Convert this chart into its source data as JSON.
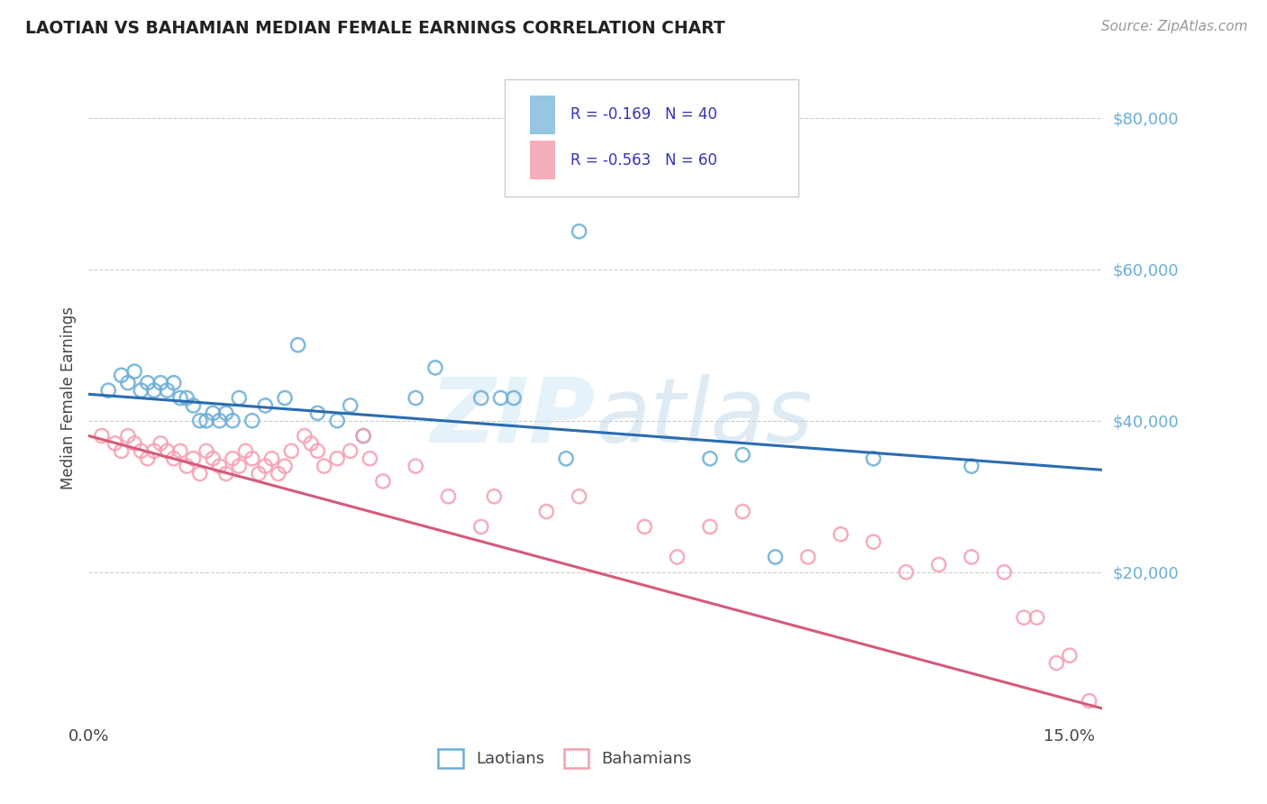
{
  "title": "LAOTIAN VS BAHAMIAN MEDIAN FEMALE EARNINGS CORRELATION CHART",
  "source": "Source: ZipAtlas.com",
  "ylabel": "Median Female Earnings",
  "xlim": [
    0.0,
    0.155
  ],
  "ylim": [
    0,
    86000
  ],
  "ytick_vals": [
    20000,
    40000,
    60000,
    80000
  ],
  "ytick_labels": [
    "$20,000",
    "$40,000",
    "$60,000",
    "$80,000"
  ],
  "xtick_vals": [
    0.0,
    0.15
  ],
  "xtick_labels": [
    "0.0%",
    "15.0%"
  ],
  "bg_color": "#ffffff",
  "grid_color": "#cccccc",
  "blue_color": "#6baed6",
  "pink_color": "#f4a0b0",
  "pink_line_color": "#d45b7a",
  "blue_line_color": "#2b6cb0",
  "watermark_text": "ZIPatlas",
  "watermark_color": "#c8dff0",
  "legend_R_blue": "-0.169",
  "legend_N_blue": "40",
  "legend_R_pink": "-0.563",
  "legend_N_pink": "60",
  "blue_line_x": [
    0.0,
    0.155
  ],
  "blue_line_y": [
    43500,
    33500
  ],
  "pink_line_x": [
    0.0,
    0.155
  ],
  "pink_line_y": [
    38000,
    2000
  ],
  "laotian_x": [
    0.003,
    0.005,
    0.006,
    0.007,
    0.008,
    0.009,
    0.01,
    0.011,
    0.012,
    0.013,
    0.014,
    0.015,
    0.016,
    0.017,
    0.018,
    0.019,
    0.02,
    0.021,
    0.022,
    0.023,
    0.025,
    0.027,
    0.03,
    0.032,
    0.035,
    0.038,
    0.04,
    0.042,
    0.05,
    0.053,
    0.06,
    0.063,
    0.065,
    0.073,
    0.075,
    0.095,
    0.1,
    0.105,
    0.12,
    0.135
  ],
  "laotian_y": [
    44000,
    46000,
    45000,
    46500,
    44000,
    45000,
    44000,
    45000,
    44000,
    45000,
    43000,
    43000,
    42000,
    40000,
    40000,
    41000,
    40000,
    41000,
    40000,
    43000,
    40000,
    42000,
    43000,
    50000,
    41000,
    40000,
    42000,
    38000,
    43000,
    47000,
    43000,
    43000,
    43000,
    35000,
    65000,
    35000,
    35500,
    22000,
    35000,
    34000
  ],
  "bahamian_x": [
    0.002,
    0.004,
    0.005,
    0.006,
    0.007,
    0.008,
    0.009,
    0.01,
    0.011,
    0.012,
    0.013,
    0.014,
    0.015,
    0.016,
    0.017,
    0.018,
    0.019,
    0.02,
    0.021,
    0.022,
    0.023,
    0.024,
    0.025,
    0.026,
    0.027,
    0.028,
    0.029,
    0.03,
    0.031,
    0.033,
    0.034,
    0.035,
    0.036,
    0.038,
    0.04,
    0.042,
    0.043,
    0.045,
    0.05,
    0.055,
    0.06,
    0.062,
    0.07,
    0.075,
    0.085,
    0.09,
    0.095,
    0.1,
    0.11,
    0.115,
    0.12,
    0.125,
    0.13,
    0.135,
    0.14,
    0.143,
    0.145,
    0.148,
    0.15,
    0.153
  ],
  "bahamian_y": [
    38000,
    37000,
    36000,
    38000,
    37000,
    36000,
    35000,
    36000,
    37000,
    36000,
    35000,
    36000,
    34000,
    35000,
    33000,
    36000,
    35000,
    34000,
    33000,
    35000,
    34000,
    36000,
    35000,
    33000,
    34000,
    35000,
    33000,
    34000,
    36000,
    38000,
    37000,
    36000,
    34000,
    35000,
    36000,
    38000,
    35000,
    32000,
    34000,
    30000,
    26000,
    30000,
    28000,
    30000,
    26000,
    22000,
    26000,
    28000,
    22000,
    25000,
    24000,
    20000,
    21000,
    22000,
    20000,
    14000,
    14000,
    8000,
    9000,
    3000
  ]
}
